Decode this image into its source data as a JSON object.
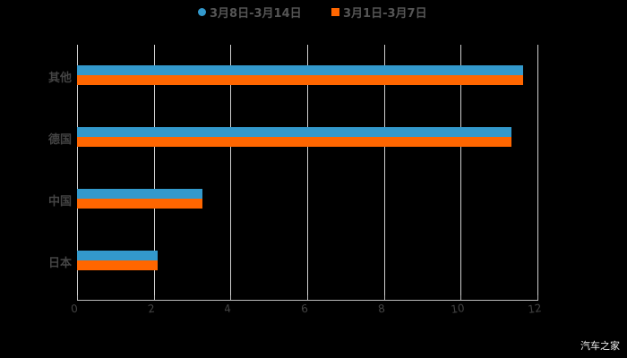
{
  "chart_data": {
    "type": "bar",
    "orientation": "horizontal",
    "title": "",
    "xlabel": "",
    "ylabel": "",
    "categories": [
      "其他",
      "德国",
      "中国",
      "日本"
    ],
    "series": [
      {
        "name": "3月8日-3月14日",
        "color": "#3399cc",
        "values": [
          11.63,
          11.32,
          3.27,
          2.1
        ]
      },
      {
        "name": "3月1日-3月7日",
        "color": "#ff6600",
        "values": [
          11.63,
          11.32,
          3.27,
          2.1
        ]
      }
    ],
    "xlim": [
      0,
      12
    ],
    "xticks": [
      "0",
      "2",
      "4",
      "6",
      "8",
      "10",
      "12"
    ],
    "grid": true,
    "legend_position": "top"
  },
  "legend": {
    "item1": "3月8日-3月14日",
    "item2": "3月1日-3月7日"
  },
  "watermark": "汽车之家"
}
